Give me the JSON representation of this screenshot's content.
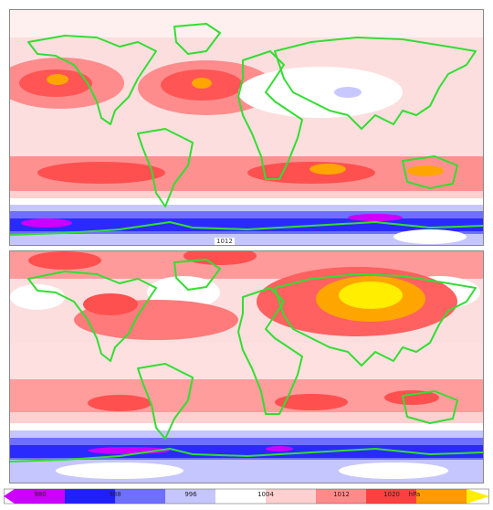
{
  "colorbar": {
    "ticks": [
      "980",
      "988",
      "996",
      "1004",
      "1012",
      "1020"
    ],
    "unit": "hPa",
    "colors": [
      "#cc00ff",
      "#2020ff",
      "#6f6fff",
      "#c6c6ff",
      "#ffffff",
      "#ffd0d0",
      "#ff8a8a",
      "#ff4040",
      "#ff9a00",
      "#ffee00"
    ]
  },
  "panels": {
    "top": {
      "strip_label": "1012"
    },
    "bottom": {
      "strip_label": ""
    }
  },
  "palette": {
    "coastline": "#33dd33",
    "high": "#ff4444",
    "very_high": "#ffa500",
    "peak": "#ffff00",
    "low": "#4040ff",
    "very_low": "#cc00ff",
    "neutral": "#ffffff",
    "light_high": "#ffc8c8"
  }
}
